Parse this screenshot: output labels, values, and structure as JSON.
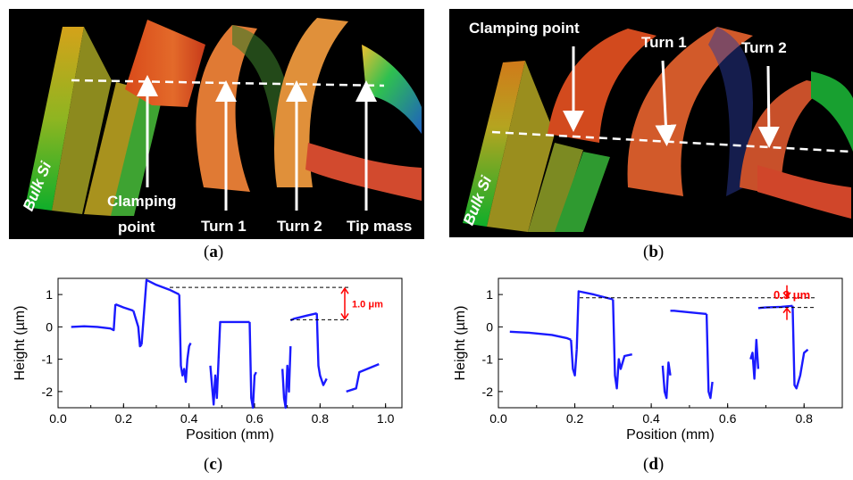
{
  "panels": {
    "a": {
      "caption_letter": "a",
      "labels": {
        "bulk": "Bulk Si",
        "clamping_line1": "Clamping",
        "clamping_line2": "point",
        "turn1": "Turn 1",
        "turn2": "Turn 2",
        "tip": "Tip mass"
      }
    },
    "b": {
      "caption_letter": "b",
      "labels": {
        "bulk": "Bulk Si",
        "clamping": "Clamping point",
        "turn1": "Turn 1",
        "turn2": "Turn 2"
      }
    },
    "c": {
      "caption_letter": "c"
    },
    "d": {
      "caption_letter": "d"
    }
  },
  "colors": {
    "line": "#1a1aff",
    "annotation": "#ff0000",
    "dashed": "#000000"
  },
  "chart_data": [
    {
      "id": "c",
      "type": "line",
      "xlabel": "Position (mm)",
      "ylabel": "Height (µm)",
      "xlim": [
        0.0,
        1.05
      ],
      "ylim": [
        -2.5,
        1.5
      ],
      "xticks": [
        "0.0",
        "0.2",
        "0.4",
        "0.6",
        "0.8",
        "1.0"
      ],
      "yticks": [
        "-2",
        "-1",
        "0",
        "1"
      ],
      "annotation": "1.0 μm",
      "annotation_levels": [
        1.22,
        0.22
      ],
      "series": [
        {
          "x": [
            0.04,
            0.08,
            0.12,
            0.16,
            0.17,
            0.175
          ],
          "y": [
            0.0,
            0.02,
            0.0,
            -0.05,
            -0.1,
            0.7
          ]
        },
        {
          "x": [
            0.175,
            0.2,
            0.23
          ],
          "y": [
            0.7,
            0.6,
            0.5
          ]
        },
        {
          "x": [
            0.23,
            0.245,
            0.25,
            0.255
          ],
          "y": [
            0.5,
            0.0,
            -0.6,
            -0.55
          ]
        },
        {
          "x": [
            0.255,
            0.27,
            0.3,
            0.34,
            0.37
          ],
          "y": [
            -0.55,
            1.45,
            1.3,
            1.15,
            1.0
          ]
        },
        {
          "x": [
            0.37,
            0.375,
            0.38,
            0.385,
            0.39,
            0.395,
            0.4,
            0.405
          ],
          "y": [
            1.0,
            -1.2,
            -1.5,
            -1.3,
            -1.7,
            -1.0,
            -0.6,
            -0.5
          ]
        },
        {
          "x": [
            0.465,
            0.47,
            0.475,
            0.48,
            0.485,
            0.49
          ],
          "y": [
            -1.2,
            -1.8,
            -2.4,
            -1.5,
            -2.2,
            -1.0
          ]
        },
        {
          "x": [
            0.49,
            0.495,
            0.52,
            0.56,
            0.585
          ],
          "y": [
            -1.0,
            0.15,
            0.15,
            0.15,
            0.15
          ]
        },
        {
          "x": [
            0.585,
            0.59,
            0.595,
            0.6,
            0.605
          ],
          "y": [
            0.15,
            -2.2,
            -2.5,
            -1.5,
            -1.4
          ]
        },
        {
          "x": [
            0.685,
            0.69,
            0.695,
            0.7,
            0.705,
            0.71
          ],
          "y": [
            -1.3,
            -2.2,
            -2.5,
            -1.2,
            -2.0,
            -0.6
          ]
        },
        {
          "x": [
            0.71,
            0.72,
            0.76,
            0.79
          ],
          "y": [
            0.2,
            0.25,
            0.35,
            0.42
          ]
        },
        {
          "x": [
            0.79,
            0.795,
            0.8,
            0.81,
            0.82
          ],
          "y": [
            0.42,
            -1.2,
            -1.5,
            -1.8,
            -1.6
          ]
        },
        {
          "x": [
            0.88,
            0.91,
            0.92,
            0.98
          ],
          "y": [
            -2.0,
            -1.9,
            -1.4,
            -1.15
          ]
        }
      ]
    },
    {
      "id": "d",
      "type": "line",
      "xlabel": "Position (mm)",
      "ylabel": "Height (µm)",
      "xlim": [
        0.0,
        0.9
      ],
      "ylim": [
        -2.5,
        1.5
      ],
      "xticks": [
        "0.0",
        "0.2",
        "0.4",
        "0.6",
        "0.8"
      ],
      "yticks": [
        "-2",
        "-1",
        "0",
        "1"
      ],
      "annotation": "0.3 μm",
      "annotation_levels": [
        0.9,
        0.6
      ],
      "series": [
        {
          "x": [
            0.03,
            0.08,
            0.14,
            0.18,
            0.19
          ],
          "y": [
            -0.15,
            -0.18,
            -0.25,
            -0.35,
            -0.4
          ]
        },
        {
          "x": [
            0.19,
            0.195,
            0.2,
            0.205
          ],
          "y": [
            -0.4,
            -1.3,
            -1.5,
            -0.7
          ]
        },
        {
          "x": [
            0.205,
            0.21,
            0.25,
            0.3
          ],
          "y": [
            -0.7,
            1.1,
            1.0,
            0.85
          ]
        },
        {
          "x": [
            0.3,
            0.305,
            0.31,
            0.315,
            0.32,
            0.33,
            0.35
          ],
          "y": [
            0.85,
            -1.5,
            -1.9,
            -1.0,
            -1.3,
            -0.9,
            -0.85
          ]
        },
        {
          "x": [
            0.43,
            0.435,
            0.44,
            0.445,
            0.45
          ],
          "y": [
            -1.2,
            -2.0,
            -2.2,
            -1.1,
            -1.5
          ]
        },
        {
          "x": [
            0.45,
            0.46,
            0.5,
            0.545
          ],
          "y": [
            0.5,
            0.5,
            0.45,
            0.4
          ]
        },
        {
          "x": [
            0.545,
            0.55,
            0.555,
            0.56
          ],
          "y": [
            0.4,
            -2.0,
            -2.2,
            -1.7
          ]
        },
        {
          "x": [
            0.66,
            0.665,
            0.67,
            0.675,
            0.68
          ],
          "y": [
            -1.0,
            -0.8,
            -1.6,
            -0.4,
            -1.3
          ]
        },
        {
          "x": [
            0.68,
            0.7,
            0.74,
            0.77
          ],
          "y": [
            0.58,
            0.6,
            0.62,
            0.65
          ]
        },
        {
          "x": [
            0.77,
            0.775,
            0.78,
            0.79,
            0.8,
            0.81
          ],
          "y": [
            0.65,
            -1.8,
            -1.9,
            -1.5,
            -0.8,
            -0.7
          ]
        }
      ]
    }
  ]
}
